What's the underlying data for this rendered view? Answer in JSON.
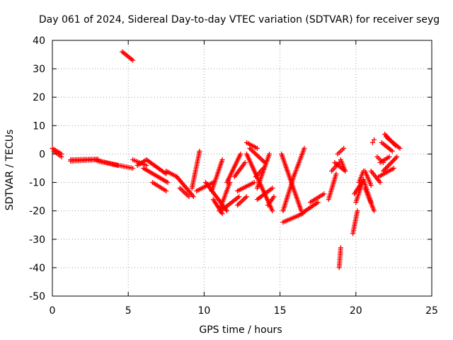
{
  "chart_data": {
    "type": "scatter",
    "title": "Day 061 of 2024, Sidereal Day-to-day VTEC variation (SDTVAR) for receiver seyg",
    "xlabel": "GPS time / hours",
    "ylabel": "SDTVAR / TECUs",
    "xlim": [
      0,
      25
    ],
    "ylim": [
      -50,
      40
    ],
    "xticks": [
      0,
      5,
      10,
      15,
      20,
      25
    ],
    "yticks": [
      -50,
      -40,
      -30,
      -20,
      -10,
      0,
      10,
      20,
      30,
      40
    ],
    "grid": true,
    "marker": "+",
    "color": "#ff0000",
    "segments": [
      {
        "x": [
          0.0,
          0.6
        ],
        "y": [
          2,
          0
        ]
      },
      {
        "x": [
          0.1,
          0.6
        ],
        "y": [
          1,
          -1
        ]
      },
      {
        "x": [
          1.2,
          3.0
        ],
        "y": [
          -2.5,
          -2
        ]
      },
      {
        "x": [
          1.2,
          3.0
        ],
        "y": [
          -2,
          -1.8
        ]
      },
      {
        "x": [
          2.8,
          4.3
        ],
        "y": [
          -2,
          -4
        ]
      },
      {
        "x": [
          3.0,
          5.3
        ],
        "y": [
          -2.5,
          -5
        ]
      },
      {
        "x": [
          4.6,
          5.3
        ],
        "y": [
          36,
          33
        ]
      },
      {
        "x": [
          5.3,
          6.2
        ],
        "y": [
          -2,
          -4
        ]
      },
      {
        "x": [
          5.6,
          6.2
        ],
        "y": [
          -4,
          -2
        ]
      },
      {
        "x": [
          6.2,
          7.5
        ],
        "y": [
          -2,
          -7
        ]
      },
      {
        "x": [
          6.0,
          7.6
        ],
        "y": [
          -5,
          -10
        ]
      },
      {
        "x": [
          6.6,
          7.5
        ],
        "y": [
          -10,
          -13
        ]
      },
      {
        "x": [
          7.5,
          8.2
        ],
        "y": [
          -6,
          -8
        ]
      },
      {
        "x": [
          8.2,
          9.3
        ],
        "y": [
          -8,
          -15
        ]
      },
      {
        "x": [
          8.4,
          9.0
        ],
        "y": [
          -12,
          -15
        ]
      },
      {
        "x": [
          9.2,
          9.7
        ],
        "y": [
          -12,
          1
        ]
      },
      {
        "x": [
          9.5,
          10.6
        ],
        "y": [
          -13,
          -10
        ]
      },
      {
        "x": [
          10.1,
          11.5
        ],
        "y": [
          -10,
          -20
        ]
      },
      {
        "x": [
          10.5,
          11.2
        ],
        "y": [
          -13,
          -2
        ]
      },
      {
        "x": [
          10.6,
          11.2
        ],
        "y": [
          -16,
          -21
        ]
      },
      {
        "x": [
          11.0,
          11.7
        ],
        "y": [
          -20,
          -10
        ]
      },
      {
        "x": [
          11.5,
          12.4
        ],
        "y": [
          -10,
          0
        ]
      },
      {
        "x": [
          11.1,
          12.3
        ],
        "y": [
          -20,
          -15
        ]
      },
      {
        "x": [
          12.0,
          12.7
        ],
        "y": [
          -8,
          -3
        ]
      },
      {
        "x": [
          12.2,
          13.3
        ],
        "y": [
          -13,
          -10
        ]
      },
      {
        "x": [
          12.2,
          12.8
        ],
        "y": [
          -18,
          -15
        ]
      },
      {
        "x": [
          12.8,
          14.5
        ],
        "y": [
          0,
          -20
        ]
      },
      {
        "x": [
          13.0,
          14.0
        ],
        "y": [
          2,
          -3
        ]
      },
      {
        "x": [
          12.8,
          13.5
        ],
        "y": [
          4,
          2
        ]
      },
      {
        "x": [
          13.4,
          13.9
        ],
        "y": [
          -8,
          -5
        ]
      },
      {
        "x": [
          13.5,
          14.3
        ],
        "y": [
          -12,
          0
        ]
      },
      {
        "x": [
          13.5,
          14.5
        ],
        "y": [
          -16,
          -12
        ]
      },
      {
        "x": [
          14.2,
          14.6
        ],
        "y": [
          -18,
          -15
        ]
      },
      {
        "x": [
          15.1,
          16.4
        ],
        "y": [
          0,
          -20
        ]
      },
      {
        "x": [
          15.2,
          15.9
        ],
        "y": [
          -20,
          -8
        ]
      },
      {
        "x": [
          15.9,
          16.6
        ],
        "y": [
          -8,
          2
        ]
      },
      {
        "x": [
          15.2,
          16.5
        ],
        "y": [
          -24,
          -21
        ]
      },
      {
        "x": [
          16.4,
          17.5
        ],
        "y": [
          -21,
          -17
        ]
      },
      {
        "x": [
          17.0,
          17.9
        ],
        "y": [
          -17,
          -14
        ]
      },
      {
        "x": [
          18.2,
          18.7
        ],
        "y": [
          -16,
          -7
        ]
      },
      {
        "x": [
          18.4,
          18.9
        ],
        "y": [
          -6,
          -3
        ]
      },
      {
        "x": [
          18.6,
          19.3
        ],
        "y": [
          -3,
          -6
        ]
      },
      {
        "x": [
          18.8,
          19.2
        ],
        "y": [
          0,
          2
        ]
      },
      {
        "x": [
          18.9,
          19.0
        ],
        "y": [
          -40,
          -33
        ]
      },
      {
        "x": [
          19.0,
          19.3
        ],
        "y": [
          -2,
          -6
        ]
      },
      {
        "x": [
          19.8,
          20.1
        ],
        "y": [
          -28,
          -20
        ]
      },
      {
        "x": [
          20.0,
          20.5
        ],
        "y": [
          -17,
          -9
        ]
      },
      {
        "x": [
          19.9,
          20.4
        ],
        "y": [
          -14,
          -10
        ]
      },
      {
        "x": [
          20.2,
          20.5
        ],
        "y": [
          -10,
          -6
        ]
      },
      {
        "x": [
          20.5,
          21.0
        ],
        "y": [
          -9,
          -17
        ]
      },
      {
        "x": [
          20.6,
          21.0
        ],
        "y": [
          -6,
          -11
        ]
      },
      {
        "x": [
          20.6,
          21.2
        ],
        "y": [
          -12,
          -20
        ]
      },
      {
        "x": [
          21.0,
          21.6
        ],
        "y": [
          -6,
          -10
        ]
      },
      {
        "x": [
          21.6,
          22.2
        ],
        "y": [
          -3,
          -1
        ]
      },
      {
        "x": [
          21.4,
          21.8
        ],
        "y": [
          -1,
          -3
        ]
      },
      {
        "x": [
          21.5,
          22.5
        ],
        "y": [
          -8,
          -5
        ]
      },
      {
        "x": [
          21.8,
          22.7
        ],
        "y": [
          -6,
          -1
        ]
      },
      {
        "x": [
          21.9,
          22.6
        ],
        "y": [
          7,
          3
        ]
      },
      {
        "x": [
          22.0,
          22.9
        ],
        "y": [
          6,
          2
        ]
      },
      {
        "x": [
          21.7,
          22.4
        ],
        "y": [
          4,
          1
        ]
      },
      {
        "x": [
          21.1,
          21.2
        ],
        "y": [
          4,
          5
        ]
      }
    ]
  }
}
